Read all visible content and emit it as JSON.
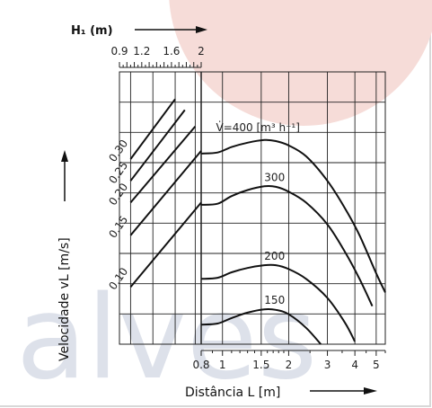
{
  "colors": {
    "watermark_circle": "#f6dcd8",
    "watermark_text": "#dde1ea",
    "grid": "#222222",
    "curve": "#111111"
  },
  "watermark": {
    "text": "alves"
  },
  "chart_data": [
    {
      "type": "line",
      "title": "",
      "xlabel": "H₁ (m)",
      "ylabel": "Velocidade   vL   [m/s]",
      "x_ticks": [
        "0.9",
        "1.2",
        "1.6",
        "2"
      ],
      "xlim": [
        0.9,
        2.0
      ],
      "series": [
        {
          "name": "0.30",
          "x": [
            1.05,
            1.65
          ],
          "y": [
            0.34,
            0.45
          ]
        },
        {
          "name": "0.25",
          "x": [
            1.05,
            1.78
          ],
          "y": [
            0.3,
            0.43
          ]
        },
        {
          "name": "0.20",
          "x": [
            1.05,
            1.92
          ],
          "y": [
            0.26,
            0.4
          ]
        },
        {
          "name": "0.15",
          "x": [
            1.05,
            2.0
          ],
          "y": [
            0.2,
            0.355
          ]
        },
        {
          "name": "0.10",
          "x": [
            1.05,
            2.0
          ],
          "y": [
            0.105,
            0.26
          ]
        }
      ],
      "curve_labels": [
        "0.30",
        "0.25",
        "0.20",
        "0.15",
        "0.10"
      ]
    },
    {
      "type": "line",
      "title": "",
      "xlabel": "Distância  L   [m]",
      "ylabel": "",
      "x_scale": "log",
      "x_ticks": [
        "0.8",
        "1",
        "1.5",
        "2",
        "3",
        "4",
        "5"
      ],
      "xlim": [
        0.8,
        5.5
      ],
      "series": [
        {
          "name": "V̇=400  [m³ h⁻¹]",
          "x": [
            0.8,
            0.95,
            1.1,
            1.3,
            1.55,
            1.75,
            2.0,
            2.4,
            3.0,
            3.6,
            4.2,
            5.0,
            5.5
          ],
          "y": [
            0.35,
            0.352,
            0.362,
            0.37,
            0.375,
            0.373,
            0.365,
            0.345,
            0.3,
            0.25,
            0.2,
            0.13,
            0.095
          ]
        },
        {
          "name": "300",
          "x": [
            0.8,
            0.95,
            1.1,
            1.3,
            1.55,
            1.75,
            2.0,
            2.4,
            3.0,
            3.6,
            4.2,
            4.8
          ],
          "y": [
            0.256,
            0.258,
            0.272,
            0.283,
            0.29,
            0.289,
            0.28,
            0.26,
            0.22,
            0.17,
            0.12,
            0.07
          ]
        },
        {
          "name": "200",
          "x": [
            0.8,
            0.95,
            1.1,
            1.3,
            1.55,
            1.75,
            2.0,
            2.4,
            3.0,
            3.6,
            4.0
          ],
          "y": [
            0.12,
            0.122,
            0.132,
            0.14,
            0.145,
            0.145,
            0.138,
            0.12,
            0.085,
            0.04,
            0.005
          ]
        },
        {
          "name": "150",
          "x": [
            0.8,
            0.95,
            1.1,
            1.3,
            1.55,
            1.75,
            2.0,
            2.4,
            2.8
          ],
          "y": [
            0.036,
            0.038,
            0.048,
            0.058,
            0.064,
            0.063,
            0.055,
            0.03,
            0.0
          ]
        }
      ],
      "curve_labels": [
        "V̇=400  [m³ h⁻¹]",
        "300",
        "200",
        "150"
      ]
    }
  ]
}
